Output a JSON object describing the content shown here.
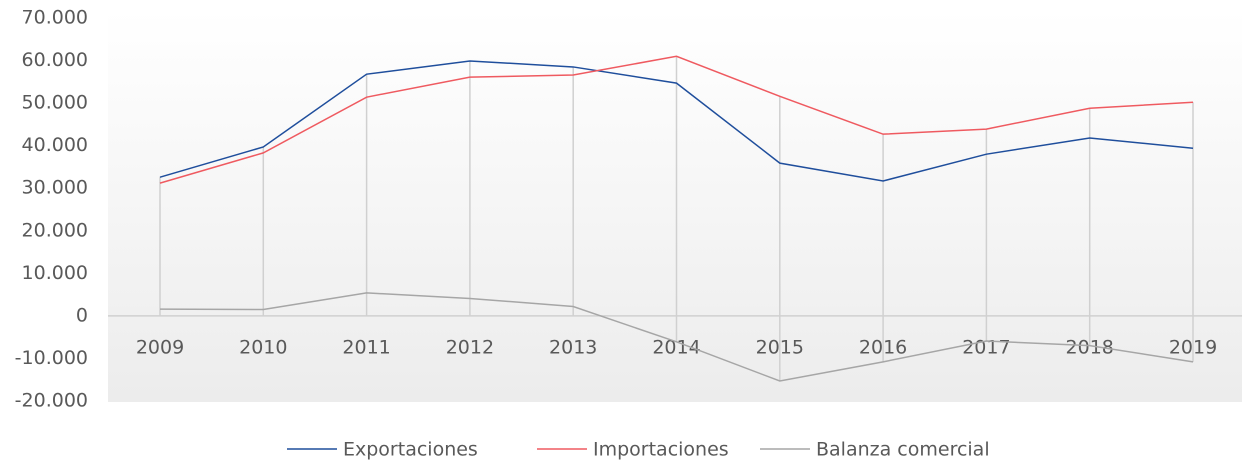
{
  "chart_data": {
    "type": "line",
    "categories": [
      "2009",
      "2010",
      "2011",
      "2012",
      "2013",
      "2014",
      "2015",
      "2016",
      "2017",
      "2018",
      "2019"
    ],
    "series": [
      {
        "name": "Exportaciones",
        "color": "#1f4e9c",
        "values": [
          32600,
          39700,
          56800,
          59900,
          58500,
          54700,
          35900,
          31700,
          38000,
          41800,
          39400
        ]
      },
      {
        "name": "Importaciones",
        "color": "#ef5a60",
        "values": [
          31200,
          38300,
          51400,
          56100,
          56600,
          61000,
          51600,
          42700,
          43900,
          48800,
          50200
        ]
      },
      {
        "name": "Balanza comercial",
        "color": "#a6a6a6",
        "values": [
          1600,
          1500,
          5400,
          4100,
          2200,
          -6100,
          -15300,
          -10800,
          -5900,
          -7000,
          -10800
        ]
      }
    ],
    "ylim": [
      -20000,
      70000
    ],
    "yticks": [
      {
        "value": -20000,
        "label": "-20.000"
      },
      {
        "value": -10000,
        "label": "-10.000"
      },
      0,
      {
        "value": 10000,
        "label": "10.000"
      },
      {
        "value": 20000,
        "label": "20.000"
      },
      {
        "value": 30000,
        "label": "30.000"
      },
      {
        "value": 40000,
        "label": "40.000"
      },
      {
        "value": 50000,
        "label": "50.000"
      },
      {
        "value": 60000,
        "label": "60.000"
      },
      {
        "value": 70000,
        "label": "70.000"
      }
    ],
    "legend": "bottom"
  }
}
